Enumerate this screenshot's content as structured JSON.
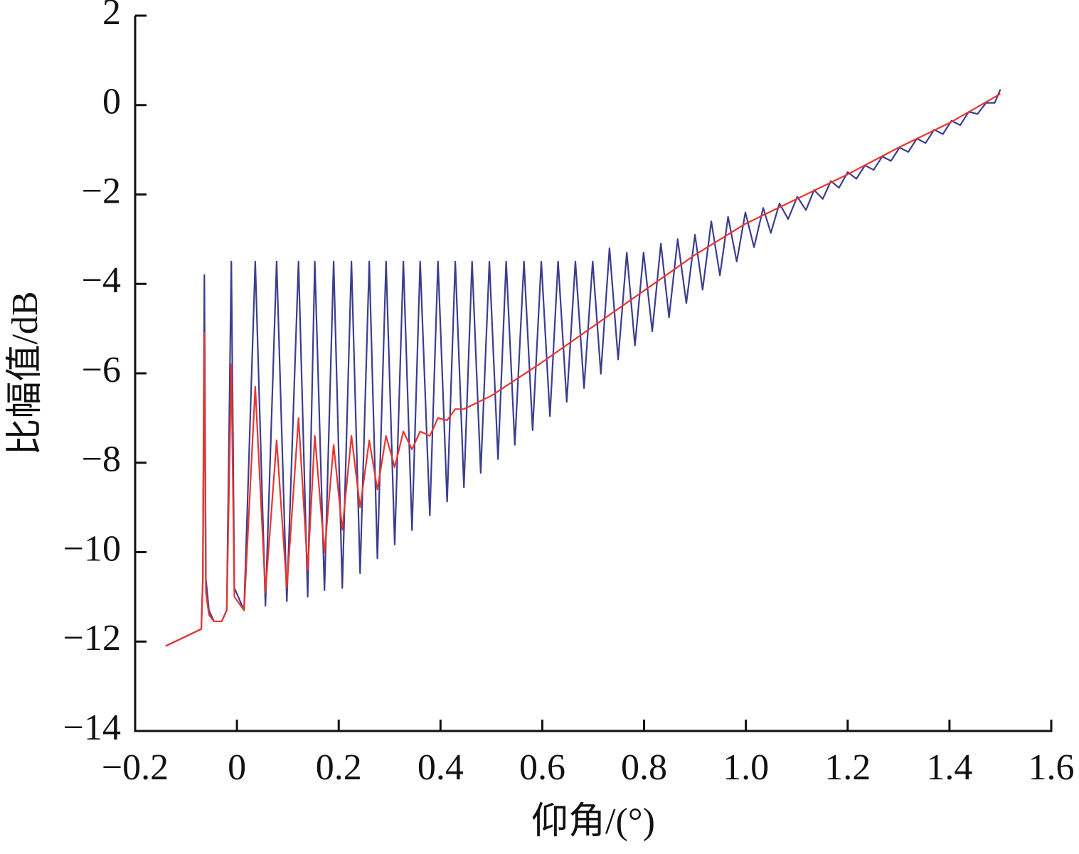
{
  "chart_data": {
    "type": "line",
    "xlabel": "仰角/(°)",
    "ylabel": "比幅值/dB",
    "xlim": [
      -0.2,
      1.6
    ],
    "xticks": [
      {
        "value": -0.2,
        "label": "−0.2"
      },
      0,
      0.2,
      0.4,
      0.6,
      0.8,
      {
        "value": 1.0,
        "label": "1.0"
      },
      1.2,
      1.4,
      1.6
    ],
    "ylim": [
      -14,
      2
    ],
    "yticks": [
      {
        "value": -14,
        "label": "−14"
      },
      {
        "value": -12,
        "label": "−12"
      },
      {
        "value": -10,
        "label": "−10"
      },
      {
        "value": -8,
        "label": "−8"
      },
      {
        "value": -6,
        "label": "−6"
      },
      {
        "value": -4,
        "label": "−4"
      },
      {
        "value": -2,
        "label": "−2"
      },
      0,
      2
    ],
    "series": [
      {
        "color": "#3a3e8e",
        "x": [
          -0.14,
          -0.07,
          -0.067,
          -0.064,
          -0.061,
          -0.055,
          -0.045,
          -0.03,
          -0.02,
          -0.011,
          -0.005,
          0.014,
          0.036,
          0.056,
          0.078,
          0.098,
          0.121,
          0.139,
          0.153,
          0.172,
          0.19,
          0.207,
          0.225,
          0.242,
          0.26,
          0.276,
          0.293,
          0.31,
          0.327,
          0.344,
          0.36,
          0.379,
          0.395,
          0.413,
          0.429,
          0.446,
          0.462,
          0.479,
          0.496,
          0.513,
          0.529,
          0.546,
          0.564,
          0.581,
          0.598,
          0.615,
          0.631,
          0.648,
          0.665,
          0.682,
          0.699,
          0.715,
          0.732,
          0.749,
          0.766,
          0.782,
          0.799,
          0.816,
          0.833,
          0.849,
          0.866,
          0.883,
          0.9,
          0.915,
          0.932,
          0.949,
          0.965,
          0.982,
          0.999,
          1.016,
          1.034,
          1.049,
          1.066,
          1.083,
          1.101,
          1.118,
          1.134,
          1.151,
          1.167,
          1.183,
          1.2,
          1.217,
          1.234,
          1.251,
          1.268,
          1.285,
          1.302,
          1.319,
          1.336,
          1.353,
          1.37,
          1.387,
          1.404,
          1.421,
          1.438,
          1.455,
          1.472,
          1.489,
          1.5
        ],
        "values": [
          -12.1,
          -11.72,
          -10.6,
          -3.8,
          -10.6,
          -11.3,
          -11.55,
          -11.55,
          -11.3,
          -3.5,
          -10.8,
          -11.3,
          -3.5,
          -11.2,
          -3.5,
          -11.1,
          -3.5,
          -11.0,
          -3.5,
          -10.85,
          -3.5,
          -10.8,
          -3.5,
          -10.47,
          -3.5,
          -10.14,
          -3.5,
          -9.83,
          -3.5,
          -9.51,
          -3.5,
          -9.18,
          -3.5,
          -8.87,
          -3.5,
          -8.55,
          -3.5,
          -8.23,
          -3.5,
          -7.92,
          -3.5,
          -7.6,
          -3.5,
          -7.27,
          -3.5,
          -6.96,
          -3.5,
          -6.64,
          -3.5,
          -6.33,
          -3.5,
          -6.01,
          -3.2,
          -5.69,
          -3.3,
          -5.38,
          -3.3,
          -5.06,
          -3.1,
          -4.75,
          -3.0,
          -4.43,
          -2.9,
          -4.13,
          -2.6,
          -3.81,
          -2.5,
          -3.5,
          -2.4,
          -3.18,
          -2.3,
          -2.86,
          -2.2,
          -2.55,
          -2.05,
          -2.35,
          -1.9,
          -2.1,
          -1.7,
          -1.85,
          -1.5,
          -1.65,
          -1.35,
          -1.45,
          -1.15,
          -1.25,
          -0.95,
          -1.05,
          -0.75,
          -0.85,
          -0.55,
          -0.65,
          -0.35,
          -0.45,
          -0.15,
          -0.2,
          0.05,
          0.05,
          0.35
        ]
      },
      {
        "color": "#e8352e",
        "x": [
          -0.14,
          -0.07,
          -0.067,
          -0.064,
          -0.061,
          -0.055,
          -0.045,
          -0.03,
          -0.02,
          -0.011,
          -0.005,
          0.014,
          0.036,
          0.056,
          0.078,
          0.098,
          0.121,
          0.139,
          0.153,
          0.172,
          0.19,
          0.207,
          0.225,
          0.242,
          0.26,
          0.276,
          0.293,
          0.31,
          0.327,
          0.344,
          0.36,
          0.379,
          0.395,
          0.413,
          0.429,
          0.446,
          0.5,
          0.6,
          0.7,
          0.8,
          0.9,
          1.0,
          1.1,
          1.2,
          1.3,
          1.4,
          1.5
        ],
        "values": [
          -12.1,
          -11.72,
          -10.6,
          -5.1,
          -10.9,
          -11.4,
          -11.55,
          -11.55,
          -11.3,
          -5.8,
          -11.0,
          -11.3,
          -6.3,
          -10.9,
          -7.5,
          -10.8,
          -7.0,
          -10.4,
          -7.4,
          -10.0,
          -7.6,
          -9.5,
          -7.4,
          -9.0,
          -7.5,
          -8.6,
          -7.4,
          -8.1,
          -7.3,
          -7.7,
          -7.3,
          -7.4,
          -7.0,
          -7.05,
          -6.8,
          -6.8,
          -6.5,
          -5.75,
          -4.95,
          -4.15,
          -3.35,
          -2.65,
          -2.1,
          -1.55,
          -0.95,
          -0.4,
          0.25
        ]
      }
    ]
  }
}
